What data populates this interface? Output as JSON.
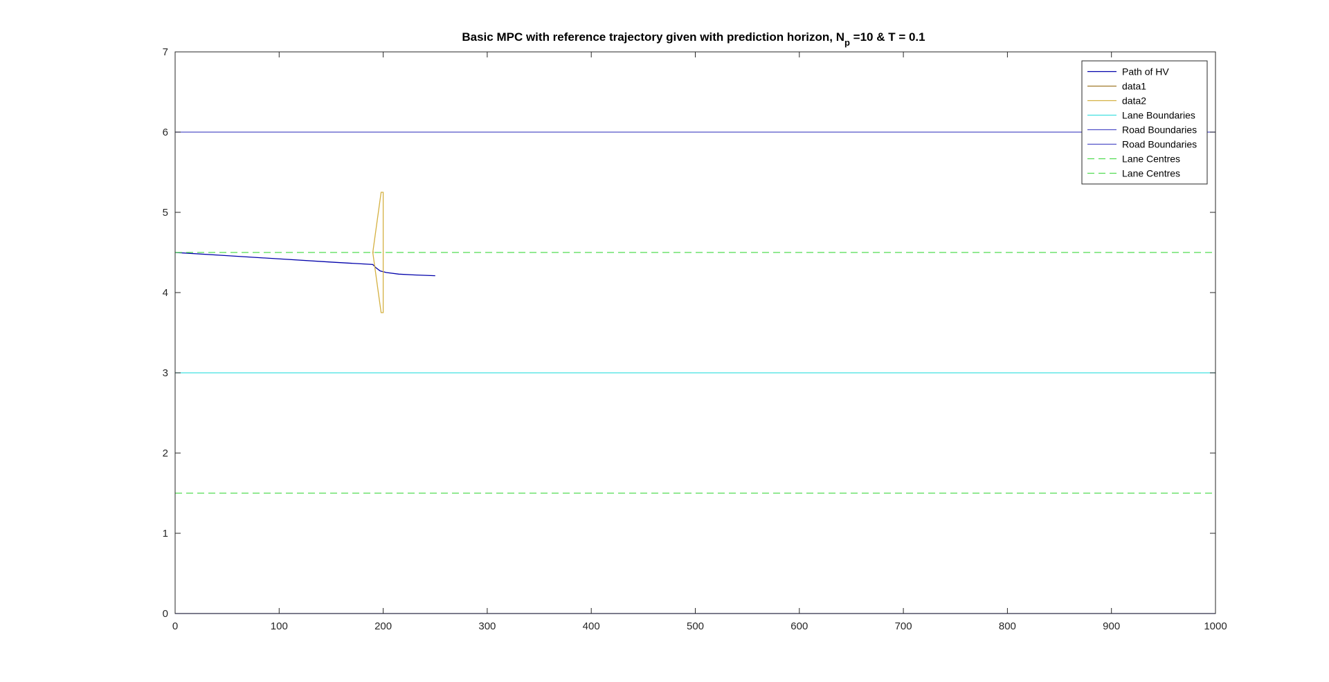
{
  "chart_data": {
    "type": "line",
    "title": "Basic MPC with reference trajectory given with prediction horizon, N",
    "title_subscript": "p",
    "title_suffix": " =10 & T = 0.1",
    "xlabel": "",
    "ylabel": "",
    "xlim": [
      0,
      1000
    ],
    "ylim": [
      0,
      7
    ],
    "xticks": [
      0,
      100,
      200,
      300,
      400,
      500,
      600,
      700,
      800,
      900,
      1000
    ],
    "yticks": [
      0,
      1,
      2,
      3,
      4,
      5,
      6,
      7
    ],
    "grid": false,
    "legend_placement": "top-right",
    "series": [
      {
        "name": "Path of HV",
        "color": "#0000aa",
        "dash": "solid",
        "x": [
          0,
          50,
          100,
          150,
          190,
          193,
          197,
          203,
          215,
          230,
          250
        ],
        "y": [
          4.5,
          4.46,
          4.42,
          4.38,
          4.35,
          4.31,
          4.27,
          4.25,
          4.23,
          4.22,
          4.21
        ]
      },
      {
        "name": "data1",
        "color": "#a07828",
        "dash": "solid",
        "x": [
          190,
          190.5
        ],
        "y": [
          4.49,
          4.51
        ]
      },
      {
        "name": "data2",
        "color": "#d4b040",
        "dash": "solid",
        "x": [
          190,
          198,
          200,
          200,
          198,
          190
        ],
        "y": [
          4.5,
          5.25,
          5.25,
          3.75,
          3.75,
          4.5
        ]
      },
      {
        "name": "Lane Boundaries",
        "color": "#40e0e0",
        "dash": "solid",
        "x": [
          0,
          1000
        ],
        "y": [
          3,
          3
        ]
      },
      {
        "name": "Road Boundaries",
        "color": "#5050c8",
        "dash": "solid",
        "x": [
          0,
          1000
        ],
        "y": [
          6,
          6
        ]
      },
      {
        "name": "Road Boundaries",
        "color": "#5050c8",
        "dash": "solid",
        "x": [
          0,
          1000
        ],
        "y": [
          0,
          0
        ]
      },
      {
        "name": "Lane Centres",
        "color": "#50dc50",
        "dash": "dashed",
        "x": [
          0,
          1000
        ],
        "y": [
          4.5,
          4.5
        ]
      },
      {
        "name": "Lane Centres",
        "color": "#50dc50",
        "dash": "dashed",
        "x": [
          0,
          1000
        ],
        "y": [
          1.5,
          1.5
        ]
      }
    ]
  }
}
